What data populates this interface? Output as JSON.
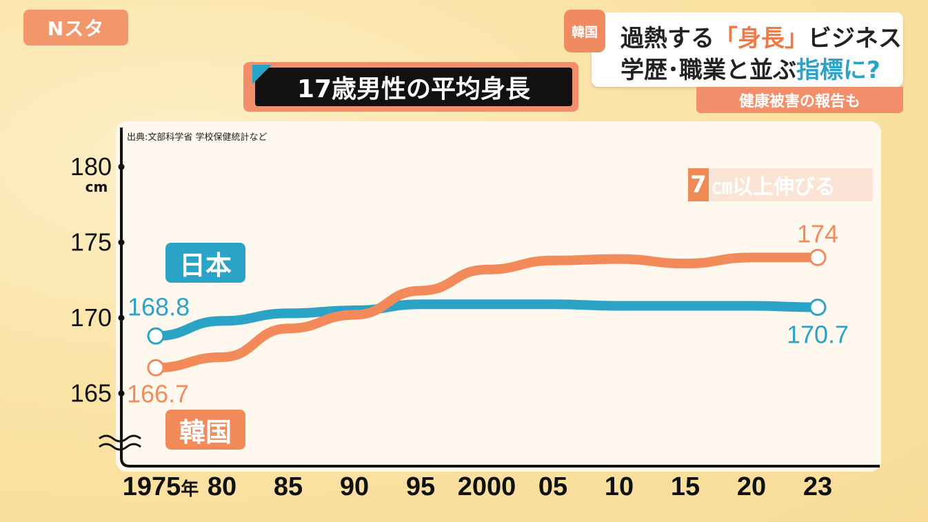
{
  "header": {
    "logo": "Nスタ",
    "country_tag": "韓国",
    "headline_line1_pre": "過熱する",
    "headline_line1_hl": "「身長」",
    "headline_line1_post": "ビジネス",
    "headline_line2_pre": "学歴･職業と並ぶ",
    "headline_line2_hl": "指標に?",
    "subhead": "健康被害の報告も"
  },
  "callout": {
    "num": "7",
    "rest": "㎝以上伸びる"
  },
  "chart_data": {
    "type": "line",
    "title": "17歳男性の平均身長",
    "source": "出典:文部科学省 学校保健統計など",
    "ylabel_unit": "cm",
    "x": [
      "1975",
      "80",
      "85",
      "90",
      "95",
      "2000",
      "05",
      "10",
      "15",
      "20",
      "23"
    ],
    "x_tick_labels": [
      "1975年",
      "80",
      "85",
      "90",
      "95",
      "2000",
      "05",
      "10",
      "15",
      "20",
      "23"
    ],
    "yticks": [
      165,
      170,
      175,
      180
    ],
    "ylim": [
      161.5,
      182
    ],
    "series": [
      {
        "name": "日本",
        "color": "#2aa3c7",
        "values": [
          168.8,
          169.8,
          170.3,
          170.5,
          170.9,
          170.9,
          170.9,
          170.8,
          170.8,
          170.8,
          170.7
        ],
        "start_label": "168.8",
        "end_label": "170.7"
      },
      {
        "name": "韓国",
        "color": "#f28a5a",
        "values": [
          166.7,
          167.4,
          169.3,
          170.2,
          171.8,
          173.2,
          173.8,
          173.9,
          173.6,
          174.0,
          174.0
        ],
        "start_label": "166.7",
        "end_label": "174"
      }
    ]
  }
}
